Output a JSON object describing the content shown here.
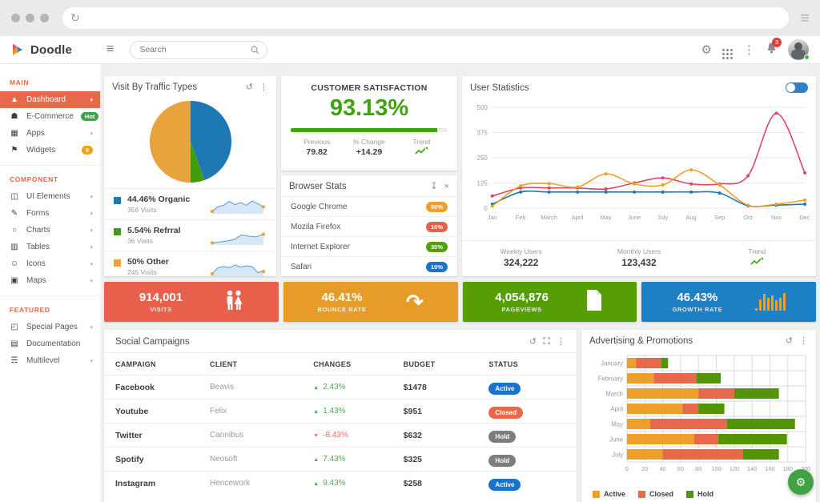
{
  "icons": {
    "reload": "↻",
    "menu": "≡",
    "hamburger": "≡",
    "gear": "⚙",
    "kebab": "⋮",
    "refresh": "↺",
    "download": "↧",
    "close": "×",
    "chevron": "▾",
    "up_arrow": "▲",
    "down_arrow": "▼",
    "fab_gear": "⚙"
  },
  "topnav": {
    "brand": "Doodle",
    "search_placeholder": "Search",
    "notification_count": "3"
  },
  "sidebar": {
    "sections": [
      {
        "title": "MAIN",
        "items": [
          {
            "label": "Dashboard",
            "slug": "dashboard",
            "glyph": "▲",
            "active": true,
            "chevron": true
          },
          {
            "label": "E-Commerce",
            "slug": "ecommerce",
            "glyph": "☗",
            "badge": "Hot",
            "badge_color": "#43a047"
          },
          {
            "label": "Apps",
            "slug": "apps",
            "glyph": "▦",
            "chevron": true
          },
          {
            "label": "Widgets",
            "slug": "widgets",
            "glyph": "⚑",
            "badge": "8",
            "badge_color": "#f0a11a"
          }
        ]
      },
      {
        "title": "COMPONENT",
        "items": [
          {
            "label": "UI Elements",
            "slug": "ui-elements",
            "glyph": "◫",
            "chevron": true
          },
          {
            "label": "Forms",
            "slug": "forms",
            "glyph": "✎",
            "chevron": true
          },
          {
            "label": "Charts",
            "slug": "charts",
            "glyph": "○",
            "chevron": true
          },
          {
            "label": "Tables",
            "slug": "tables",
            "glyph": "▥",
            "chevron": true
          },
          {
            "label": "Icons",
            "slug": "icons",
            "glyph": "☺",
            "chevron": true
          },
          {
            "label": "Maps",
            "slug": "maps",
            "glyph": "▣",
            "chevron": true
          }
        ]
      },
      {
        "title": "FEATURED",
        "items": [
          {
            "label": "Special Pages",
            "slug": "special-pages",
            "glyph": "◰",
            "chevron": true
          },
          {
            "label": "Documentation",
            "slug": "documentation",
            "glyph": "▤"
          },
          {
            "label": "Multilevel",
            "slug": "multilevel",
            "glyph": "☴",
            "chevron": true
          }
        ]
      }
    ]
  },
  "satisfaction": {
    "title": "CUSTOMER SATISFACTION",
    "value": "93.13%",
    "progress_pct": 93.13,
    "previous_label": "Previous",
    "previous": "79.82",
    "change_label": "% Change",
    "change": "+14.29",
    "trend_label": "Trend"
  },
  "browser_stats": {
    "title": "Browser Stats",
    "rows": [
      {
        "name": "Google Chrome",
        "pct": "50%",
        "color": "#eca02a"
      },
      {
        "name": "Mozila Firefox",
        "pct": "10%",
        "color": "#e8604c"
      },
      {
        "name": "Internet Explorer",
        "pct": "30%",
        "color": "#549e0e"
      },
      {
        "name": "Safari",
        "pct": "10%",
        "color": "#1a73c8"
      }
    ]
  },
  "user_stats_footer": {
    "weekly_label": "Weekly Users",
    "weekly": "324,222",
    "monthly_label": "Monthly Users",
    "monthly": "123,432",
    "trend_label": "Trend"
  },
  "tiles": [
    {
      "value": "914,001",
      "label": "VISITS",
      "color": "#e8604c",
      "icon": "people-icon",
      "glyph": ""
    },
    {
      "value": "46.41%",
      "label": "BOUNCE RATE",
      "color": "#e79b28",
      "icon": "bounce-arrow-icon",
      "glyph": "↷"
    },
    {
      "value": "4,054,876",
      "label": "PAGEVIEWS",
      "color": "#559e06",
      "icon": "page-icon",
      "glyph": ""
    },
    {
      "value": "46.43%",
      "label": "GROWTH RATE",
      "color": "#1d80c4",
      "icon": "bar-chart-icon",
      "glyph": ""
    }
  ],
  "social": {
    "title": "Social Campaigns",
    "columns": [
      "CAMPAIGN",
      "CLIENT",
      "CHANGES",
      "BUDGET",
      "STATUS"
    ],
    "status_colors": {
      "Active": "#1a73c8",
      "Closed": "#e8684a",
      "Hold": "#7d7d7d"
    },
    "rows": [
      {
        "campaign": "Facebook",
        "client": "Beavis",
        "change": "2.43%",
        "dir": "up",
        "budget": "$1478",
        "status": "Active"
      },
      {
        "campaign": "Youtube",
        "client": "Felix",
        "change": "1.43%",
        "dir": "up",
        "budget": "$951",
        "status": "Closed"
      },
      {
        "campaign": "Twitter",
        "client": "Cannibus",
        "change": "-8.43%",
        "dir": "down",
        "budget": "$632",
        "status": "Hold"
      },
      {
        "campaign": "Spotify",
        "client": "Neosoft",
        "change": "7.43%",
        "dir": "up",
        "budget": "$325",
        "status": "Hold"
      },
      {
        "campaign": "Instagram",
        "client": "Hencework",
        "change": "9.43%",
        "dir": "up",
        "budget": "$258",
        "status": "Active"
      }
    ]
  },
  "chart_data": [
    {
      "type": "pie",
      "title": "Visit By Traffic Types",
      "slices": [
        {
          "label": "Organic",
          "pct": 44.46,
          "visits": 356,
          "color": "#1e78b4",
          "pct_text": "44.46% Organic",
          "visits_text": "356 Visits"
        },
        {
          "label": "Refrral",
          "pct": 5.54,
          "visits": 36,
          "color": "#459b0e",
          "pct_text": "5.54% Refrral",
          "visits_text": "36 Visits"
        },
        {
          "label": "Other",
          "pct": 50,
          "visits": 245,
          "color": "#e8a33d",
          "pct_text": "50% Other",
          "visits_text": "245 Visits"
        }
      ],
      "sparklines": [
        [
          10,
          40,
          48,
          72,
          52,
          65,
          48,
          75,
          58,
          38
        ],
        [
          8,
          14,
          20,
          30,
          58,
          50,
          46,
          62
        ],
        [
          10,
          48,
          55,
          48,
          65,
          52,
          60,
          55,
          18,
          25
        ]
      ]
    },
    {
      "type": "line",
      "title": "User Statistics",
      "x": [
        "Jan",
        "Feb",
        "March",
        "April",
        "May",
        "June",
        "July",
        "Aug",
        "Sep",
        "Oct",
        "Nov",
        "Dec"
      ],
      "ylim": [
        0,
        500
      ],
      "yticks": [
        0,
        125,
        250,
        375,
        500
      ],
      "grid": true,
      "legend": "none",
      "series": [
        {
          "name": "blue",
          "color": "#1e78b4",
          "values": [
            20,
            80,
            80,
            80,
            80,
            80,
            80,
            80,
            75,
            12,
            15,
            20
          ]
        },
        {
          "name": "red",
          "color": "#e0446c",
          "values": [
            60,
            100,
            100,
            100,
            95,
            125,
            150,
            120,
            120,
            160,
            470,
            175
          ]
        },
        {
          "name": "orange",
          "color": "#eca02a",
          "values": [
            10,
            110,
            122,
            105,
            170,
            120,
            115,
            190,
            115,
            15,
            20,
            40
          ]
        }
      ]
    },
    {
      "type": "bar-horizontal-stacked",
      "title": "Advertising & Promotions",
      "categories": [
        "January",
        "February",
        "March",
        "April",
        "May",
        "June",
        "July"
      ],
      "xlim": [
        0,
        200
      ],
      "xticks": [
        0,
        20,
        40,
        60,
        80,
        100,
        120,
        140,
        160,
        180,
        200
      ],
      "grid": true,
      "legend_position": "bottom",
      "series": [
        {
          "name": "Active",
          "color": "#eca02a",
          "values": [
            10,
            30,
            80,
            62,
            26,
            75,
            40
          ]
        },
        {
          "name": "Closed",
          "color": "#e8684a",
          "values": [
            28,
            48,
            40,
            18,
            86,
            27,
            90
          ]
        },
        {
          "name": "Hold",
          "color": "#549407",
          "values": [
            8,
            27,
            50,
            29,
            76,
            77,
            40
          ]
        }
      ]
    }
  ]
}
